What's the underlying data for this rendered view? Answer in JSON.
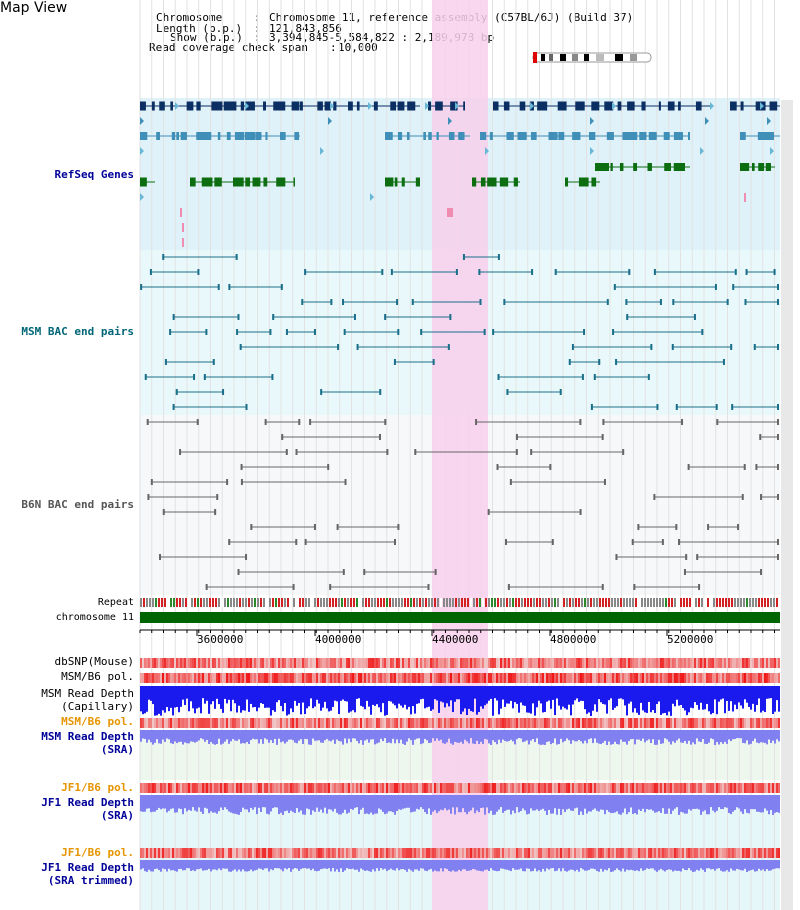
{
  "view_title": "Map View",
  "header": {
    "chromosome_key": "Chromosome",
    "chromosome_value": "Chromosome 11, reference assembly (C57BL/6J) (Build 37)",
    "length_key": "Length (b.p.)",
    "length_value": "121,843,856",
    "show_key": "Show (b.p.)",
    "show_value": "3,394,845-5,584,822 : 2,189,978 bp",
    "span_key": "Read coverage check span",
    "span_value": "10,000"
  },
  "tracks": {
    "refseq": "RefSeq Genes",
    "msm_bac": "MSM BAC end pairs",
    "b6n_bac": "B6N BAC end pairs",
    "repeat": "Repeat",
    "chromosome": "chromosome 11",
    "dbsnp": "dbSNP(Mouse)",
    "msm_b6_pol_1": "MSM/B6 pol.",
    "msm_depth_cap_1": "MSM Read Depth",
    "msm_depth_cap_2": "(Capillary)",
    "msm_b6_pol_2": "MSM/B6 pol.",
    "msm_depth_sra_1": "MSM Read Depth",
    "msm_depth_sra_2": "(SRA)",
    "jf1_pol_1": "JF1/B6 pol.",
    "jf1_depth_sra_1": "JF1 Read Depth",
    "jf1_depth_sra_2": "(SRA)",
    "jf1_pol_2": "JF1/B6 pol.",
    "jf1_depth_trim_1": "JF1 Read Depth",
    "jf1_depth_trim_2": "(SRA trimmed)"
  },
  "axis_ticks": [
    "3600000",
    "4000000",
    "4400000",
    "4800000",
    "5200000"
  ],
  "colors": {
    "refseq_bg": "#dff1f9",
    "msm_bg": "#e9f9fb",
    "b6n_bg": "#f6f8fa",
    "highlight": "#f8d0ec",
    "chromosome_bar": "#006400",
    "refseq_dark": "#0b2f63",
    "refseq_mid": "#3f8fb8",
    "refseq_green": "#0c6e10",
    "msm_pair": "#1b6f8a",
    "b6n_pair": "#666666",
    "depth_blue": "#1a1aee",
    "depth_sra": "#8080f0",
    "label_blue": "#000099",
    "label_teal": "#006677",
    "label_gray": "#555555",
    "label_orange": "#e69500"
  }
}
